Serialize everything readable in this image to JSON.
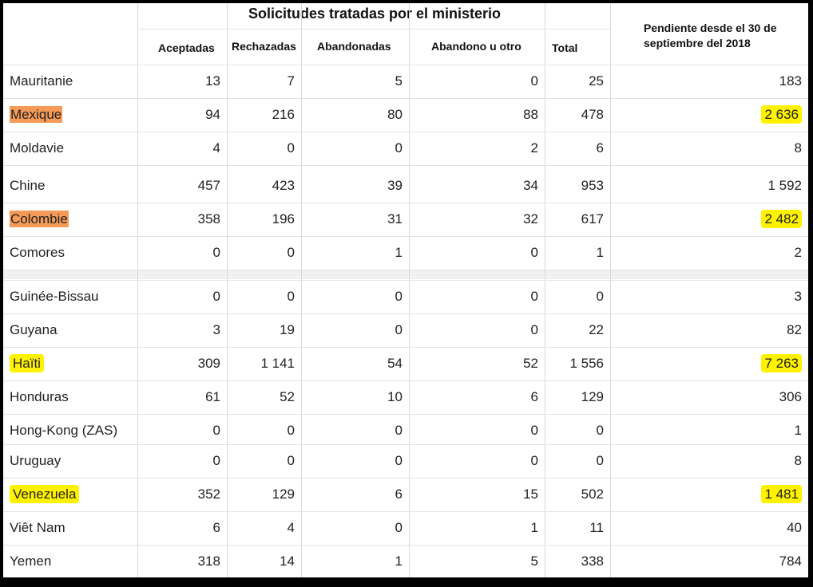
{
  "table": {
    "title": "Solicitudes tratadas por el ministerio",
    "pending_header": "Pendiente desde el 30 de septiembre del 2018",
    "columns": [
      "Aceptadas",
      "Rechazadas",
      "Abandonadas",
      "Abandono u otro",
      "Total"
    ],
    "rows": [
      {
        "country": "Mauritanie",
        "values": [
          "13",
          "7",
          "5",
          "0",
          "25"
        ],
        "pending": "183",
        "highlight": "none"
      },
      {
        "country": "Mexique",
        "values": [
          "94",
          "216",
          "80",
          "88",
          "478"
        ],
        "pending": "2 636",
        "highlight": "orange"
      },
      {
        "country": "Moldavie",
        "values": [
          "4",
          "0",
          "0",
          "2",
          "6"
        ],
        "pending": "8",
        "highlight": "none"
      },
      {
        "country": "Chine",
        "values": [
          "457",
          "423",
          "39",
          "34",
          "953"
        ],
        "pending": "1 592",
        "highlight": "none"
      },
      {
        "country": "Colombie",
        "values": [
          "358",
          "196",
          "31",
          "32",
          "617"
        ],
        "pending": "2 482",
        "highlight": "orange"
      },
      {
        "country": "Comores",
        "values": [
          "0",
          "0",
          "1",
          "0",
          "1"
        ],
        "pending": "2",
        "highlight": "none"
      },
      {
        "country": "Guinée-Bissau",
        "values": [
          "0",
          "0",
          "0",
          "0",
          "0"
        ],
        "pending": "3",
        "highlight": "none"
      },
      {
        "country": "Guyana",
        "values": [
          "3",
          "19",
          "0",
          "0",
          "22"
        ],
        "pending": "82",
        "highlight": "none"
      },
      {
        "country": "Haïti",
        "values": [
          "309",
          "1 141",
          "54",
          "52",
          "1 556"
        ],
        "pending": "7 263",
        "highlight": "yellow"
      },
      {
        "country": "Honduras",
        "values": [
          "61",
          "52",
          "10",
          "6",
          "129"
        ],
        "pending": "306",
        "highlight": "none"
      },
      {
        "country": "Hong-Kong (ZAS)",
        "values": [
          "0",
          "0",
          "0",
          "0",
          "0"
        ],
        "pending": "1",
        "highlight": "none"
      },
      {
        "country": "Uruguay",
        "values": [
          "0",
          "0",
          "0",
          "0",
          "0"
        ],
        "pending": "8",
        "highlight": "none"
      },
      {
        "country": "Venezuela",
        "values": [
          "352",
          "129",
          "6",
          "15",
          "502"
        ],
        "pending": "1 481",
        "highlight": "yellow"
      },
      {
        "country": "Viêt Nam",
        "values": [
          "6",
          "4",
          "0",
          "1",
          "11"
        ],
        "pending": "40",
        "highlight": "none"
      },
      {
        "country": "Yemen",
        "values": [
          "318",
          "14",
          "1",
          "5",
          "338"
        ],
        "pending": "784",
        "highlight": "none"
      }
    ]
  },
  "colors": {
    "highlight_yellow": "#fff200",
    "highlight_orange": "#f59a57"
  }
}
